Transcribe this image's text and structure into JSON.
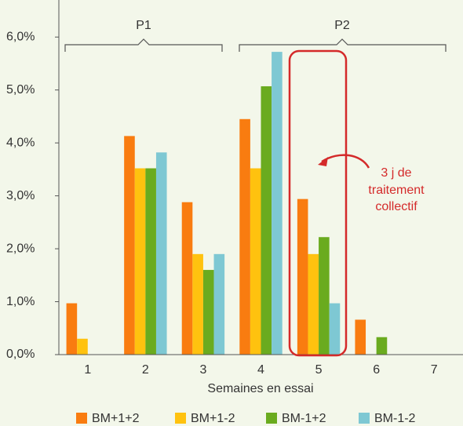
{
  "chart_data": {
    "type": "bar",
    "xlabel": "Semaines en essai",
    "categories": [
      "1",
      "2",
      "3",
      "4",
      "5",
      "6",
      "7"
    ],
    "series": [
      {
        "name": "BM+1+2",
        "color": "#f97c10",
        "values": [
          0.97,
          4.13,
          2.88,
          4.45,
          2.94,
          0.66,
          null
        ]
      },
      {
        "name": "BM+1-2",
        "color": "#ffc20f",
        "values": [
          0.3,
          3.52,
          1.9,
          3.52,
          1.9,
          null,
          null
        ]
      },
      {
        "name": "BM-1+2",
        "color": "#6aab1f",
        "values": [
          null,
          3.52,
          1.6,
          5.07,
          2.22,
          0.33,
          null
        ]
      },
      {
        "name": "BM-1-2",
        "color": "#7ec8d3",
        "values": [
          null,
          3.82,
          1.9,
          5.72,
          0.97,
          null,
          null
        ]
      }
    ],
    "ylim": [
      0,
      6.7
    ],
    "yticks": [
      {
        "value": 0,
        "label": "0,0%"
      },
      {
        "value": 1,
        "label": "1,0%"
      },
      {
        "value": 2,
        "label": "2,0%"
      },
      {
        "value": 3,
        "label": "3,0%"
      },
      {
        "value": 4,
        "label": "4,0%"
      },
      {
        "value": 5,
        "label": "5,0%"
      },
      {
        "value": 6,
        "label": "6,0%"
      }
    ],
    "periods": [
      "P1",
      "P2"
    ],
    "note": [
      "3 j de",
      "traitement",
      "collectif"
    ]
  }
}
